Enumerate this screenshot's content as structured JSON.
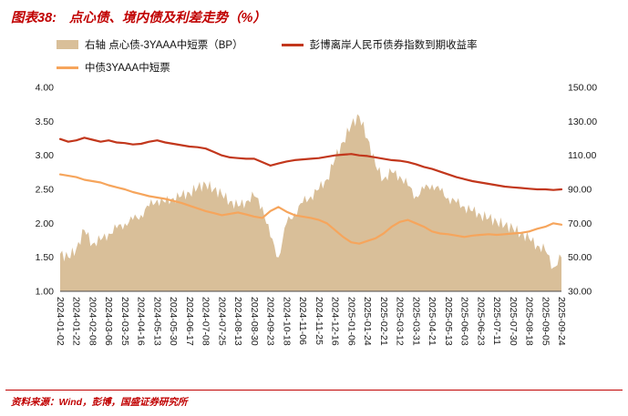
{
  "title": {
    "prefix": "图表38:",
    "text": "点心债、境内债及利差走势（%）"
  },
  "legend": [
    {
      "type": "area",
      "color": "#d9bf99",
      "label": "右轴 点心债-3YAAA中短票（BP）"
    },
    {
      "type": "line",
      "color": "#c2371c",
      "label": "彭博离岸人民币债券指数到期收益率"
    },
    {
      "type": "line",
      "color": "#f6a55c",
      "label": "中债3YAAA中短票"
    }
  ],
  "footer": {
    "text": "资料来源：Wind，彭博，国盛证券研究所"
  },
  "chart_data": {
    "type": "line+area",
    "title": "点心债、境内债及利差走势（%）",
    "grid": false,
    "legend_position": "top",
    "left_axis": {
      "min": 1.0,
      "max": 4.0,
      "ticks": [
        "4.00",
        "3.50",
        "3.00",
        "2.50",
        "2.00",
        "1.50",
        "1.00"
      ]
    },
    "right_axis": {
      "min": 30,
      "max": 150,
      "ticks": [
        "150.00",
        "130.00",
        "110.00",
        "90.00",
        "70.00",
        "50.00",
        "30.00"
      ]
    },
    "x_tick_every": 2,
    "x_tick_labels": [
      "2024-01-02",
      "2024-01-22",
      "2024-02-08",
      "2024-03-06",
      "2024-03-25",
      "2024-04-16",
      "2024-05-13",
      "2024-05-30",
      "2024-06-17",
      "2024-07-08",
      "2024-07-25",
      "2024-08-13",
      "2024-08-30",
      "2024-09-23",
      "2024-10-18",
      "2024-11-06",
      "2024-11-25",
      "2024-12-16",
      "2025-01-06",
      "2025-01-24",
      "2025-02-21",
      "2025-03-12",
      "2025-03-31",
      "2025-04-21",
      "2025-05-13",
      "2025-06-03",
      "2025-06-23",
      "2025-07-11",
      "2025-07-30",
      "2025-08-18",
      "2025-09-05",
      "2025-09-24"
    ],
    "series": [
      {
        "name": "点心债-3YAAA中短票（BP）",
        "axis": "right",
        "type": "area",
        "color": "#d9bf99",
        "values": [
          52,
          50,
          55,
          66,
          58,
          60,
          64,
          67,
          70,
          72,
          75,
          80,
          84,
          82,
          85,
          86,
          88,
          91,
          93,
          90,
          87,
          83,
          80,
          83,
          86,
          80,
          62,
          50,
          70,
          76,
          82,
          86,
          90,
          96,
          108,
          118,
          128,
          133,
          120,
          104,
          96,
          100,
          98,
          92,
          86,
          90,
          93,
          89,
          85,
          82,
          80,
          77,
          75,
          73,
          71,
          69,
          67,
          64,
          61,
          57,
          54,
          44,
          50
        ]
      },
      {
        "name": "彭博离岸人民币债券指数到期收益率",
        "axis": "left",
        "type": "line",
        "color": "#c2371c",
        "values": [
          3.24,
          3.2,
          3.22,
          3.26,
          3.23,
          3.2,
          3.22,
          3.19,
          3.18,
          3.16,
          3.17,
          3.2,
          3.22,
          3.19,
          3.17,
          3.15,
          3.13,
          3.12,
          3.1,
          3.05,
          3.0,
          2.97,
          2.96,
          2.95,
          2.95,
          2.9,
          2.85,
          2.88,
          2.91,
          2.93,
          2.94,
          2.95,
          2.96,
          2.98,
          3.0,
          3.01,
          3.02,
          3.0,
          2.99,
          2.97,
          2.95,
          2.93,
          2.92,
          2.9,
          2.87,
          2.83,
          2.8,
          2.76,
          2.72,
          2.68,
          2.65,
          2.62,
          2.6,
          2.58,
          2.56,
          2.54,
          2.53,
          2.52,
          2.51,
          2.5,
          2.5,
          2.49,
          2.5
        ]
      },
      {
        "name": "中债3YAAA中短票",
        "axis": "left",
        "type": "line",
        "color": "#f6a55c",
        "values": [
          2.72,
          2.7,
          2.68,
          2.64,
          2.62,
          2.6,
          2.56,
          2.53,
          2.5,
          2.46,
          2.43,
          2.4,
          2.38,
          2.36,
          2.33,
          2.3,
          2.26,
          2.22,
          2.18,
          2.15,
          2.12,
          2.14,
          2.16,
          2.13,
          2.1,
          2.08,
          2.18,
          2.24,
          2.17,
          2.12,
          2.1,
          2.08,
          2.05,
          2.0,
          1.9,
          1.8,
          1.72,
          1.7,
          1.74,
          1.78,
          1.85,
          1.95,
          2.02,
          2.05,
          2.0,
          1.95,
          1.88,
          1.85,
          1.84,
          1.82,
          1.8,
          1.82,
          1.83,
          1.84,
          1.83,
          1.84,
          1.85,
          1.86,
          1.88,
          1.92,
          1.95,
          2.0,
          1.98
        ]
      }
    ]
  }
}
